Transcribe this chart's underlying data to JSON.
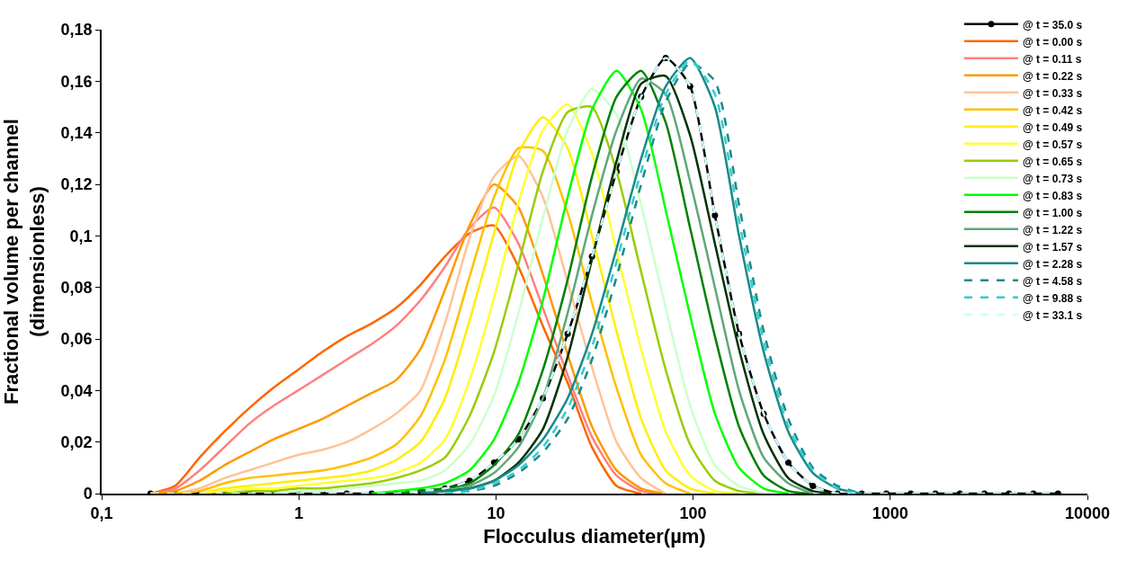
{
  "chart_data": {
    "type": "line",
    "xlabel": "Flocculus diameter(µm)",
    "ylabel": "Fractional volume per channel\n(dimensionless)",
    "log": "x",
    "grid": false,
    "legend": "top right",
    "line_style": "solid",
    "marker": "none",
    "xlim": [
      0.1,
      10000
    ],
    "xticks": [
      {
        "value": 0.1,
        "label": "0,1"
      },
      1,
      10,
      100,
      1000,
      10000
    ],
    "ylim": [
      0,
      0.18
    ],
    "yticks": [
      0,
      {
        "value": 0.02,
        "label": "0,02"
      },
      {
        "value": 0.04,
        "label": "0,04"
      },
      {
        "value": 0.06,
        "label": "0,06"
      },
      {
        "value": 0.08,
        "label": "0,08"
      },
      {
        "value": 0.1,
        "label": "0,1"
      },
      {
        "value": 0.12,
        "label": "0,12"
      },
      {
        "value": 0.14,
        "label": "0,14"
      },
      {
        "value": 0.16,
        "label": "0,16"
      },
      {
        "value": 0.18,
        "label": "0,18"
      }
    ],
    "x": [
      0.177,
      0.236,
      0.314,
      0.419,
      0.558,
      0.742,
      0.99,
      1.32,
      1.75,
      2.34,
      3.11,
      4.14,
      5.51,
      7.34,
      9.78,
      13.0,
      17.3,
      23.1,
      30.7,
      40.9,
      54.5,
      72.6,
      96.6,
      129,
      171,
      228,
      304,
      405,
      539,
      717,
      955,
      1271,
      1693,
      2254,
      3004,
      4000,
      5320,
      7096
    ],
    "series": [
      {
        "name": "@ t = 35.0 s",
        "color": "#000000",
        "marker": "circle",
        "values": [
          0,
          0,
          0,
          0,
          0,
          0,
          0,
          0,
          0,
          0,
          0,
          0.001,
          0.002,
          0.005,
          0.012,
          0.021,
          0.037,
          0.062,
          0.092,
          0.125,
          0.154,
          0.169,
          0.158,
          0.108,
          0.062,
          0.031,
          0.012,
          0.003,
          0,
          0,
          0,
          0,
          0,
          0,
          0,
          0,
          0,
          0
        ]
      },
      {
        "name": "@ t = 0.00 s",
        "color": "#ff6600",
        "values": [
          0,
          0.003,
          0.014,
          0.024,
          0.033,
          0.041,
          0.048,
          0.055,
          0.061,
          0.066,
          0.072,
          0.081,
          0.092,
          0.101,
          0.104,
          0.088,
          0.065,
          0.043,
          0.018,
          0.003,
          0,
          null,
          null,
          null,
          null,
          null,
          null,
          null,
          null,
          null,
          null,
          null,
          null,
          null,
          null,
          null,
          null,
          null
        ]
      },
      {
        "name": "@ t = 0.11 s",
        "color": "#ff8080",
        "values": [
          0,
          0.002,
          0.009,
          0.018,
          0.027,
          0.034,
          0.04,
          0.046,
          0.052,
          0.058,
          0.065,
          0.075,
          0.088,
          0.103,
          0.111,
          0.097,
          0.072,
          0.046,
          0.022,
          0.007,
          0.001,
          0,
          null,
          null,
          null,
          null,
          null,
          null,
          null,
          null,
          null,
          null,
          null,
          null,
          null,
          null,
          null,
          null
        ]
      },
      {
        "name": "@ t = 0.22 s",
        "color": "#ff9900",
        "values": [
          0,
          0.001,
          0.005,
          0.011,
          0.016,
          0.021,
          0.025,
          0.029,
          0.034,
          0.039,
          0.044,
          0.056,
          0.079,
          0.104,
          0.12,
          0.111,
          0.085,
          0.054,
          0.026,
          0.009,
          0.002,
          0,
          null,
          null,
          null,
          null,
          null,
          null,
          null,
          null,
          null,
          null,
          null,
          null,
          null,
          null,
          null,
          null
        ]
      },
      {
        "name": "@ t = 0.33 s",
        "color": "#ffc299",
        "values": [
          null,
          0,
          0.002,
          0.006,
          0.009,
          0.012,
          0.015,
          0.017,
          0.02,
          0.025,
          0.031,
          0.04,
          0.066,
          0.099,
          0.123,
          0.131,
          0.115,
          0.082,
          0.049,
          0.02,
          0.006,
          0,
          null,
          null,
          null,
          null,
          null,
          null,
          null,
          null,
          null,
          null,
          null,
          null,
          null,
          null,
          null,
          null
        ]
      },
      {
        "name": "@ t = 0.42 s",
        "color": "#ffc000",
        "values": [
          null,
          0,
          0.001,
          0.004,
          0.006,
          0.007,
          0.008,
          0.009,
          0.011,
          0.014,
          0.019,
          0.03,
          0.052,
          0.084,
          0.115,
          0.134,
          0.133,
          0.109,
          0.074,
          0.041,
          0.015,
          0.004,
          0,
          null,
          null,
          null,
          null,
          null,
          null,
          null,
          null,
          null,
          null,
          null,
          null,
          null,
          null,
          null
        ]
      },
      {
        "name": "@ t = 0.49 s",
        "color": "#ffee00",
        "values": [
          null,
          null,
          0,
          0.002,
          0.003,
          0.004,
          0.005,
          0.006,
          0.007,
          0.009,
          0.013,
          0.02,
          0.037,
          0.067,
          0.101,
          0.132,
          0.146,
          0.134,
          0.1,
          0.063,
          0.029,
          0.009,
          0.002,
          0,
          null,
          null,
          null,
          null,
          null,
          null,
          null,
          null,
          null,
          null,
          null,
          null,
          null,
          null
        ]
      },
      {
        "name": "@ t = 0.57 s",
        "color": "#ffff33",
        "values": [
          null,
          null,
          0,
          0.001,
          0.002,
          0.002,
          0.003,
          0.004,
          0.005,
          0.006,
          0.008,
          0.012,
          0.021,
          0.044,
          0.076,
          0.113,
          0.141,
          0.151,
          0.132,
          0.094,
          0.056,
          0.024,
          0.007,
          0.001,
          0,
          null,
          null,
          null,
          null,
          null,
          null,
          null,
          null,
          null,
          null,
          null,
          null,
          null
        ]
      },
      {
        "name": "@ t = 0.65 s",
        "color": "#99cc00",
        "values": [
          null,
          null,
          null,
          0,
          0.001,
          0.001,
          0.002,
          0.002,
          0.003,
          0.004,
          0.006,
          0.009,
          0.014,
          0.03,
          0.055,
          0.089,
          0.125,
          0.148,
          0.15,
          0.125,
          0.086,
          0.048,
          0.019,
          0.005,
          0.001,
          0,
          null,
          null,
          null,
          null,
          null,
          null,
          null,
          null,
          null,
          null,
          null,
          null
        ]
      },
      {
        "name": "@ t = 0.73 s",
        "color": "#ccffcc",
        "values": [
          null,
          null,
          null,
          null,
          null,
          0,
          0.001,
          0.001,
          0.002,
          0.003,
          0.004,
          0.005,
          0.009,
          0.019,
          0.038,
          0.07,
          0.107,
          0.141,
          0.157,
          0.147,
          0.112,
          0.072,
          0.034,
          0.011,
          0.003,
          0,
          null,
          null,
          null,
          null,
          null,
          null,
          null,
          null,
          null,
          null,
          null,
          null
        ]
      },
      {
        "name": "@ t = 0.83 s",
        "color": "#00ff00",
        "values": [
          null,
          null,
          null,
          null,
          null,
          null,
          null,
          null,
          null,
          0,
          0.001,
          0.002,
          0.004,
          0.009,
          0.021,
          0.043,
          0.075,
          0.115,
          0.149,
          0.164,
          0.149,
          0.11,
          0.069,
          0.031,
          0.01,
          0.002,
          0,
          null,
          null,
          null,
          null,
          null,
          null,
          null,
          null,
          null,
          null,
          null
        ]
      },
      {
        "name": "@ t = 1.00 s",
        "color": "#008000",
        "values": [
          null,
          null,
          null,
          null,
          null,
          null,
          null,
          null,
          null,
          null,
          0,
          0.001,
          0.002,
          0.004,
          0.011,
          0.023,
          0.048,
          0.083,
          0.123,
          0.154,
          0.164,
          0.144,
          0.103,
          0.061,
          0.026,
          0.007,
          0.001,
          0,
          null,
          null,
          null,
          null,
          null,
          null,
          null,
          null,
          null,
          null
        ]
      },
      {
        "name": "@ t = 1.22 s",
        "color": "#5fa879",
        "values": [
          null,
          null,
          null,
          null,
          null,
          null,
          null,
          null,
          null,
          null,
          null,
          0,
          0.001,
          0.003,
          0.008,
          0.018,
          0.037,
          0.07,
          0.108,
          0.141,
          0.161,
          0.155,
          0.121,
          0.08,
          0.04,
          0.014,
          0.004,
          0,
          null,
          null,
          null,
          null,
          null,
          null,
          null,
          null,
          null,
          null
        ]
      },
      {
        "name": "@ t = 1.57 s",
        "color": "#003300",
        "values": [
          null,
          null,
          null,
          null,
          null,
          null,
          null,
          null,
          null,
          null,
          null,
          0,
          0.001,
          0.002,
          0.005,
          0.012,
          0.025,
          0.053,
          0.091,
          0.129,
          0.159,
          0.162,
          0.139,
          0.097,
          0.056,
          0.023,
          0.006,
          0.001,
          0,
          null,
          null,
          null,
          null,
          null,
          null,
          null,
          null,
          null
        ]
      },
      {
        "name": "@ t = 2.28 s",
        "color": "#1a8a8a",
        "values": [
          null,
          null,
          null,
          null,
          null,
          null,
          null,
          null,
          null,
          null,
          null,
          0,
          0.001,
          0.002,
          0.005,
          0.011,
          0.021,
          0.037,
          0.062,
          0.095,
          0.13,
          0.158,
          0.169,
          0.15,
          0.1,
          0.055,
          0.024,
          0.008,
          0.002,
          0,
          null,
          null,
          null,
          null,
          null,
          null,
          null,
          null
        ]
      },
      {
        "name": "@ t = 4.58 s",
        "color": "#1a8a8a",
        "line_style": "dashed",
        "values": [
          null,
          null,
          null,
          null,
          null,
          null,
          null,
          null,
          null,
          null,
          null,
          null,
          0,
          0.001,
          0.003,
          0.008,
          0.016,
          0.029,
          0.052,
          0.084,
          0.12,
          0.152,
          0.167,
          0.16,
          0.112,
          0.063,
          0.029,
          0.01,
          0.003,
          0,
          null,
          null,
          null,
          null,
          null,
          null,
          null,
          null
        ]
      },
      {
        "name": "@ t = 9.88 s",
        "color": "#33cccc",
        "line_style": "dashed",
        "values": [
          null,
          null,
          null,
          null,
          null,
          null,
          null,
          null,
          null,
          null,
          null,
          null,
          0,
          0.001,
          0.004,
          0.009,
          0.018,
          0.033,
          0.057,
          0.09,
          0.125,
          0.155,
          0.168,
          0.155,
          0.106,
          0.059,
          0.026,
          0.009,
          0.002,
          0,
          null,
          null,
          null,
          null,
          null,
          null,
          null,
          null
        ]
      },
      {
        "name": "@ t = 33.1 s",
        "color": "#ccffff",
        "line_style": "dashed",
        "values": [
          0,
          0,
          0,
          0,
          0,
          0,
          0,
          0,
          0,
          0,
          0,
          0.001,
          0.002,
          0.005,
          0.012,
          0.021,
          0.037,
          0.062,
          0.092,
          0.125,
          0.154,
          0.169,
          0.158,
          0.108,
          0.062,
          0.031,
          0.012,
          0.003,
          0,
          0,
          0,
          0,
          0,
          0,
          0,
          0,
          0,
          0
        ]
      }
    ]
  }
}
